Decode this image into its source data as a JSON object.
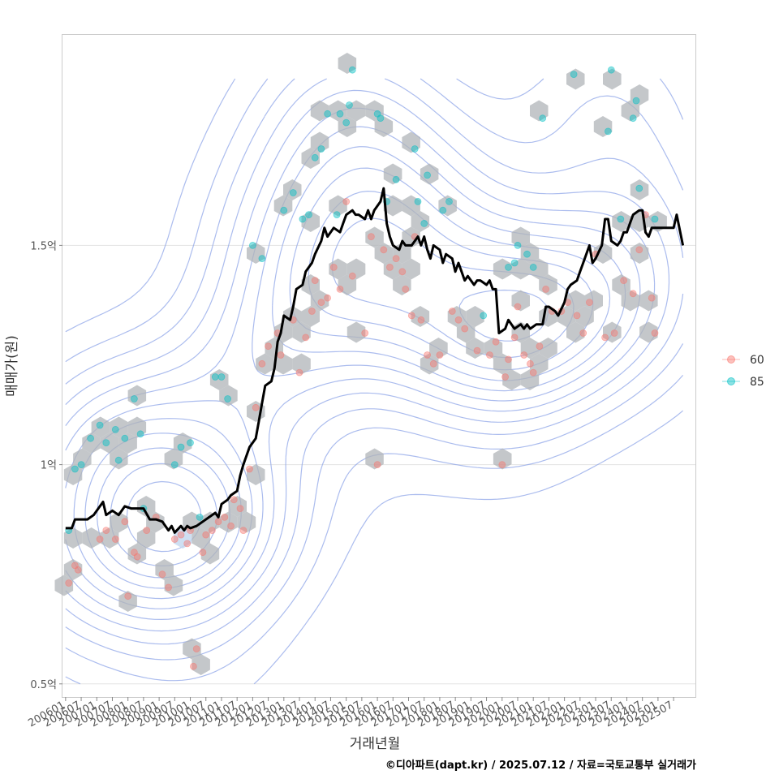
{
  "chart_data": {
    "type": "scatter",
    "title": "",
    "xlabel": "거래년월",
    "ylabel": "매매가(원)",
    "caption": "©디아파트(dapt.kr) / 2025.07.12 / 자료=국토교통부 실거래가",
    "x_ticks": [
      "200601",
      "200607",
      "200701",
      "200707",
      "200801",
      "200807",
      "200901",
      "200907",
      "201001",
      "201007",
      "201101",
      "201107",
      "201201",
      "201207",
      "201301",
      "201307",
      "201401",
      "201407",
      "201501",
      "201507",
      "201601",
      "201607",
      "201701",
      "201707",
      "201801",
      "201807",
      "201901",
      "201907",
      "202001",
      "202007",
      "202101",
      "202107",
      "202201",
      "202207",
      "202301",
      "202307",
      "202401",
      "202407",
      "202501",
      "202507"
    ],
    "y_ticks": [
      {
        "value": 0.5,
        "label": "0.5억"
      },
      {
        "value": 1.0,
        "label": "1억"
      },
      {
        "value": 1.5,
        "label": "1.5억"
      }
    ],
    "xlim": [
      2005.9,
      2026.2
    ],
    "ylim": [
      0.47,
      1.98
    ],
    "grid": true,
    "legend_position": "right",
    "colors": {
      "s60": "#F8766D",
      "s85": "#00BFC4",
      "line": "#000000",
      "contour": "#8FA5E8",
      "hex": "#B0B4B8",
      "hex_light": "#C6D9F0"
    },
    "series": [
      {
        "name": "60",
        "color": "#F8766D",
        "points": [
          [
            2006.1,
            0.73
          ],
          [
            2006.3,
            0.77
          ],
          [
            2006.4,
            0.76
          ],
          [
            2007.1,
            0.83
          ],
          [
            2007.3,
            0.85
          ],
          [
            2007.6,
            0.83
          ],
          [
            2007.9,
            0.87
          ],
          [
            2008.0,
            0.7
          ],
          [
            2008.2,
            0.8
          ],
          [
            2008.3,
            0.79
          ],
          [
            2008.6,
            0.85
          ],
          [
            2008.9,
            0.88
          ],
          [
            2009.1,
            0.75
          ],
          [
            2009.3,
            0.72
          ],
          [
            2009.5,
            0.83
          ],
          [
            2009.7,
            0.84
          ],
          [
            2009.9,
            0.82
          ],
          [
            2010.0,
            0.85
          ],
          [
            2010.1,
            0.54
          ],
          [
            2010.2,
            0.58
          ],
          [
            2010.4,
            0.8
          ],
          [
            2010.5,
            0.84
          ],
          [
            2010.7,
            0.85
          ],
          [
            2010.9,
            0.87
          ],
          [
            2011.1,
            0.88
          ],
          [
            2011.3,
            0.86
          ],
          [
            2011.4,
            0.92
          ],
          [
            2011.6,
            0.9
          ],
          [
            2011.7,
            0.85
          ],
          [
            2011.9,
            0.99
          ],
          [
            2012.1,
            1.13
          ],
          [
            2012.3,
            1.23
          ],
          [
            2012.5,
            1.27
          ],
          [
            2012.8,
            1.3
          ],
          [
            2012.9,
            1.25
          ],
          [
            2013.3,
            1.33
          ],
          [
            2013.5,
            1.21
          ],
          [
            2013.7,
            1.29
          ],
          [
            2013.9,
            1.35
          ],
          [
            2014.0,
            1.42
          ],
          [
            2014.2,
            1.37
          ],
          [
            2014.4,
            1.38
          ],
          [
            2014.6,
            1.45
          ],
          [
            2014.8,
            1.4
          ],
          [
            2015.0,
            1.6
          ],
          [
            2015.2,
            1.43
          ],
          [
            2015.6,
            1.3
          ],
          [
            2015.8,
            1.52
          ],
          [
            2016.0,
            1.0
          ],
          [
            2016.2,
            1.49
          ],
          [
            2016.4,
            1.45
          ],
          [
            2016.6,
            1.47
          ],
          [
            2016.8,
            1.44
          ],
          [
            2016.9,
            1.4
          ],
          [
            2017.1,
            1.34
          ],
          [
            2017.2,
            1.52
          ],
          [
            2017.4,
            1.33
          ],
          [
            2017.6,
            1.25
          ],
          [
            2017.8,
            1.23
          ],
          [
            2018.0,
            1.25
          ],
          [
            2018.4,
            1.35
          ],
          [
            2018.6,
            1.33
          ],
          [
            2018.8,
            1.31
          ],
          [
            2019.2,
            1.26
          ],
          [
            2019.6,
            1.25
          ],
          [
            2019.8,
            1.28
          ],
          [
            2020.0,
            1.0
          ],
          [
            2020.1,
            1.2
          ],
          [
            2020.2,
            1.24
          ],
          [
            2020.4,
            1.29
          ],
          [
            2020.5,
            1.36
          ],
          [
            2020.7,
            1.25
          ],
          [
            2020.9,
            1.23
          ],
          [
            2021.0,
            1.21
          ],
          [
            2021.2,
            1.27
          ],
          [
            2021.4,
            1.4
          ],
          [
            2021.6,
            1.35
          ],
          [
            2021.9,
            1.35
          ],
          [
            2022.1,
            1.37
          ],
          [
            2022.4,
            1.34
          ],
          [
            2022.6,
            1.3
          ],
          [
            2022.8,
            1.37
          ],
          [
            2023.0,
            1.48
          ],
          [
            2023.3,
            1.29
          ],
          [
            2023.6,
            1.3
          ],
          [
            2023.9,
            1.42
          ],
          [
            2024.2,
            1.39
          ],
          [
            2024.4,
            1.49
          ],
          [
            2024.6,
            1.57
          ],
          [
            2024.8,
            1.38
          ],
          [
            2024.9,
            1.3
          ]
        ]
      },
      {
        "name": "85",
        "color": "#00BFC4",
        "points": [
          [
            2006.1,
            0.85
          ],
          [
            2006.3,
            0.99
          ],
          [
            2006.5,
            1.0
          ],
          [
            2006.8,
            1.06
          ],
          [
            2007.1,
            1.09
          ],
          [
            2007.3,
            1.05
          ],
          [
            2007.6,
            1.08
          ],
          [
            2007.7,
            1.01
          ],
          [
            2007.9,
            1.06
          ],
          [
            2008.2,
            1.15
          ],
          [
            2008.4,
            1.07
          ],
          [
            2008.5,
            0.9
          ],
          [
            2009.5,
            1.0
          ],
          [
            2009.7,
            1.04
          ],
          [
            2010.0,
            1.05
          ],
          [
            2010.3,
            0.88
          ],
          [
            2010.8,
            1.2
          ],
          [
            2011.0,
            1.2
          ],
          [
            2011.2,
            1.15
          ],
          [
            2012.0,
            1.5
          ],
          [
            2012.3,
            1.47
          ],
          [
            2013.0,
            1.58
          ],
          [
            2013.3,
            1.62
          ],
          [
            2013.6,
            1.56
          ],
          [
            2013.8,
            1.57
          ],
          [
            2014.0,
            1.7
          ],
          [
            2014.2,
            1.72
          ],
          [
            2014.4,
            1.8
          ],
          [
            2014.7,
            1.57
          ],
          [
            2014.8,
            1.8
          ],
          [
            2015.0,
            1.78
          ],
          [
            2015.1,
            1.82
          ],
          [
            2015.2,
            1.9
          ],
          [
            2016.0,
            1.8
          ],
          [
            2016.1,
            1.79
          ],
          [
            2016.3,
            1.6
          ],
          [
            2016.6,
            1.65
          ],
          [
            2017.2,
            1.72
          ],
          [
            2017.3,
            1.6
          ],
          [
            2017.5,
            1.55
          ],
          [
            2017.6,
            1.66
          ],
          [
            2018.1,
            1.58
          ],
          [
            2018.3,
            1.6
          ],
          [
            2019.4,
            1.34
          ],
          [
            2020.2,
            1.45
          ],
          [
            2020.4,
            1.46
          ],
          [
            2020.5,
            1.5
          ],
          [
            2020.8,
            1.48
          ],
          [
            2021.0,
            1.45
          ],
          [
            2021.3,
            1.79
          ],
          [
            2022.3,
            1.89
          ],
          [
            2023.4,
            1.76
          ],
          [
            2023.5,
            1.9
          ],
          [
            2023.8,
            1.56
          ],
          [
            2024.2,
            1.79
          ],
          [
            2024.3,
            1.83
          ],
          [
            2024.4,
            1.63
          ],
          [
            2024.9,
            1.56
          ]
        ]
      }
    ],
    "trend_line": [
      [
        2006.0,
        0.855
      ],
      [
        2006.2,
        0.855
      ],
      [
        2006.3,
        0.875
      ],
      [
        2006.5,
        0.875
      ],
      [
        2006.7,
        0.875
      ],
      [
        2006.9,
        0.885
      ],
      [
        2007.0,
        0.895
      ],
      [
        2007.2,
        0.915
      ],
      [
        2007.3,
        0.885
      ],
      [
        2007.5,
        0.895
      ],
      [
        2007.7,
        0.885
      ],
      [
        2007.9,
        0.905
      ],
      [
        2008.1,
        0.9
      ],
      [
        2008.3,
        0.9
      ],
      [
        2008.5,
        0.9
      ],
      [
        2008.7,
        0.875
      ],
      [
        2008.9,
        0.875
      ],
      [
        2009.1,
        0.87
      ],
      [
        2009.3,
        0.85
      ],
      [
        2009.4,
        0.86
      ],
      [
        2009.5,
        0.845
      ],
      [
        2009.7,
        0.86
      ],
      [
        2009.8,
        0.85
      ],
      [
        2009.9,
        0.86
      ],
      [
        2010.0,
        0.855
      ],
      [
        2010.2,
        0.86
      ],
      [
        2010.4,
        0.87
      ],
      [
        2010.6,
        0.88
      ],
      [
        2010.8,
        0.89
      ],
      [
        2010.9,
        0.88
      ],
      [
        2011.0,
        0.91
      ],
      [
        2011.2,
        0.92
      ],
      [
        2011.3,
        0.93
      ],
      [
        2011.5,
        0.94
      ],
      [
        2011.6,
        0.975
      ],
      [
        2011.7,
        1.0
      ],
      [
        2011.9,
        1.04
      ],
      [
        2012.1,
        1.06
      ],
      [
        2012.2,
        1.1
      ],
      [
        2012.3,
        1.14
      ],
      [
        2012.4,
        1.18
      ],
      [
        2012.6,
        1.19
      ],
      [
        2012.7,
        1.22
      ],
      [
        2012.8,
        1.28
      ],
      [
        2012.9,
        1.3
      ],
      [
        2013.0,
        1.34
      ],
      [
        2013.2,
        1.33
      ],
      [
        2013.3,
        1.36
      ],
      [
        2013.4,
        1.4
      ],
      [
        2013.6,
        1.41
      ],
      [
        2013.7,
        1.44
      ],
      [
        2013.9,
        1.46
      ],
      [
        2014.0,
        1.48
      ],
      [
        2014.2,
        1.51
      ],
      [
        2014.3,
        1.54
      ],
      [
        2014.4,
        1.52
      ],
      [
        2014.6,
        1.54
      ],
      [
        2014.8,
        1.53
      ],
      [
        2014.9,
        1.55
      ],
      [
        2015.0,
        1.57
      ],
      [
        2015.2,
        1.58
      ],
      [
        2015.3,
        1.57
      ],
      [
        2015.4,
        1.57
      ],
      [
        2015.6,
        1.56
      ],
      [
        2015.7,
        1.58
      ],
      [
        2015.8,
        1.56
      ],
      [
        2015.9,
        1.58
      ],
      [
        2016.1,
        1.6
      ],
      [
        2016.2,
        1.63
      ],
      [
        2016.3,
        1.55
      ],
      [
        2016.4,
        1.52
      ],
      [
        2016.5,
        1.5
      ],
      [
        2016.7,
        1.49
      ],
      [
        2016.8,
        1.51
      ],
      [
        2016.9,
        1.5
      ],
      [
        2017.1,
        1.5
      ],
      [
        2017.2,
        1.51
      ],
      [
        2017.3,
        1.52
      ],
      [
        2017.4,
        1.5
      ],
      [
        2017.5,
        1.52
      ],
      [
        2017.6,
        1.49
      ],
      [
        2017.7,
        1.47
      ],
      [
        2017.8,
        1.5
      ],
      [
        2018.0,
        1.49
      ],
      [
        2018.1,
        1.46
      ],
      [
        2018.2,
        1.48
      ],
      [
        2018.4,
        1.47
      ],
      [
        2018.5,
        1.44
      ],
      [
        2018.6,
        1.46
      ],
      [
        2018.8,
        1.42
      ],
      [
        2018.9,
        1.43
      ],
      [
        2019.1,
        1.41
      ],
      [
        2019.2,
        1.42
      ],
      [
        2019.3,
        1.42
      ],
      [
        2019.5,
        1.41
      ],
      [
        2019.6,
        1.42
      ],
      [
        2019.7,
        1.4
      ],
      [
        2019.8,
        1.4
      ],
      [
        2019.9,
        1.3
      ],
      [
        2020.1,
        1.31
      ],
      [
        2020.2,
        1.33
      ],
      [
        2020.3,
        1.32
      ],
      [
        2020.4,
        1.31
      ],
      [
        2020.6,
        1.32
      ],
      [
        2020.7,
        1.31
      ],
      [
        2020.8,
        1.32
      ],
      [
        2020.9,
        1.31
      ],
      [
        2021.1,
        1.32
      ],
      [
        2021.2,
        1.32
      ],
      [
        2021.3,
        1.32
      ],
      [
        2021.4,
        1.36
      ],
      [
        2021.5,
        1.36
      ],
      [
        2021.7,
        1.35
      ],
      [
        2021.8,
        1.34
      ],
      [
        2022.0,
        1.37
      ],
      [
        2022.1,
        1.4
      ],
      [
        2022.2,
        1.41
      ],
      [
        2022.4,
        1.42
      ],
      [
        2022.5,
        1.44
      ],
      [
        2022.6,
        1.46
      ],
      [
        2022.8,
        1.5
      ],
      [
        2022.9,
        1.46
      ],
      [
        2023.0,
        1.47
      ],
      [
        2023.2,
        1.5
      ],
      [
        2023.3,
        1.56
      ],
      [
        2023.4,
        1.56
      ],
      [
        2023.5,
        1.51
      ],
      [
        2023.7,
        1.5
      ],
      [
        2023.8,
        1.51
      ],
      [
        2023.9,
        1.53
      ],
      [
        2024.0,
        1.53
      ],
      [
        2024.1,
        1.55
      ],
      [
        2024.2,
        1.57
      ],
      [
        2024.4,
        1.58
      ],
      [
        2024.5,
        1.58
      ],
      [
        2024.6,
        1.53
      ],
      [
        2024.7,
        1.52
      ],
      [
        2024.8,
        1.54
      ],
      [
        2025.0,
        1.54
      ],
      [
        2025.2,
        1.54
      ],
      [
        2025.4,
        1.54
      ],
      [
        2025.5,
        1.54
      ],
      [
        2025.6,
        1.57
      ],
      [
        2025.8,
        1.5
      ]
    ]
  }
}
